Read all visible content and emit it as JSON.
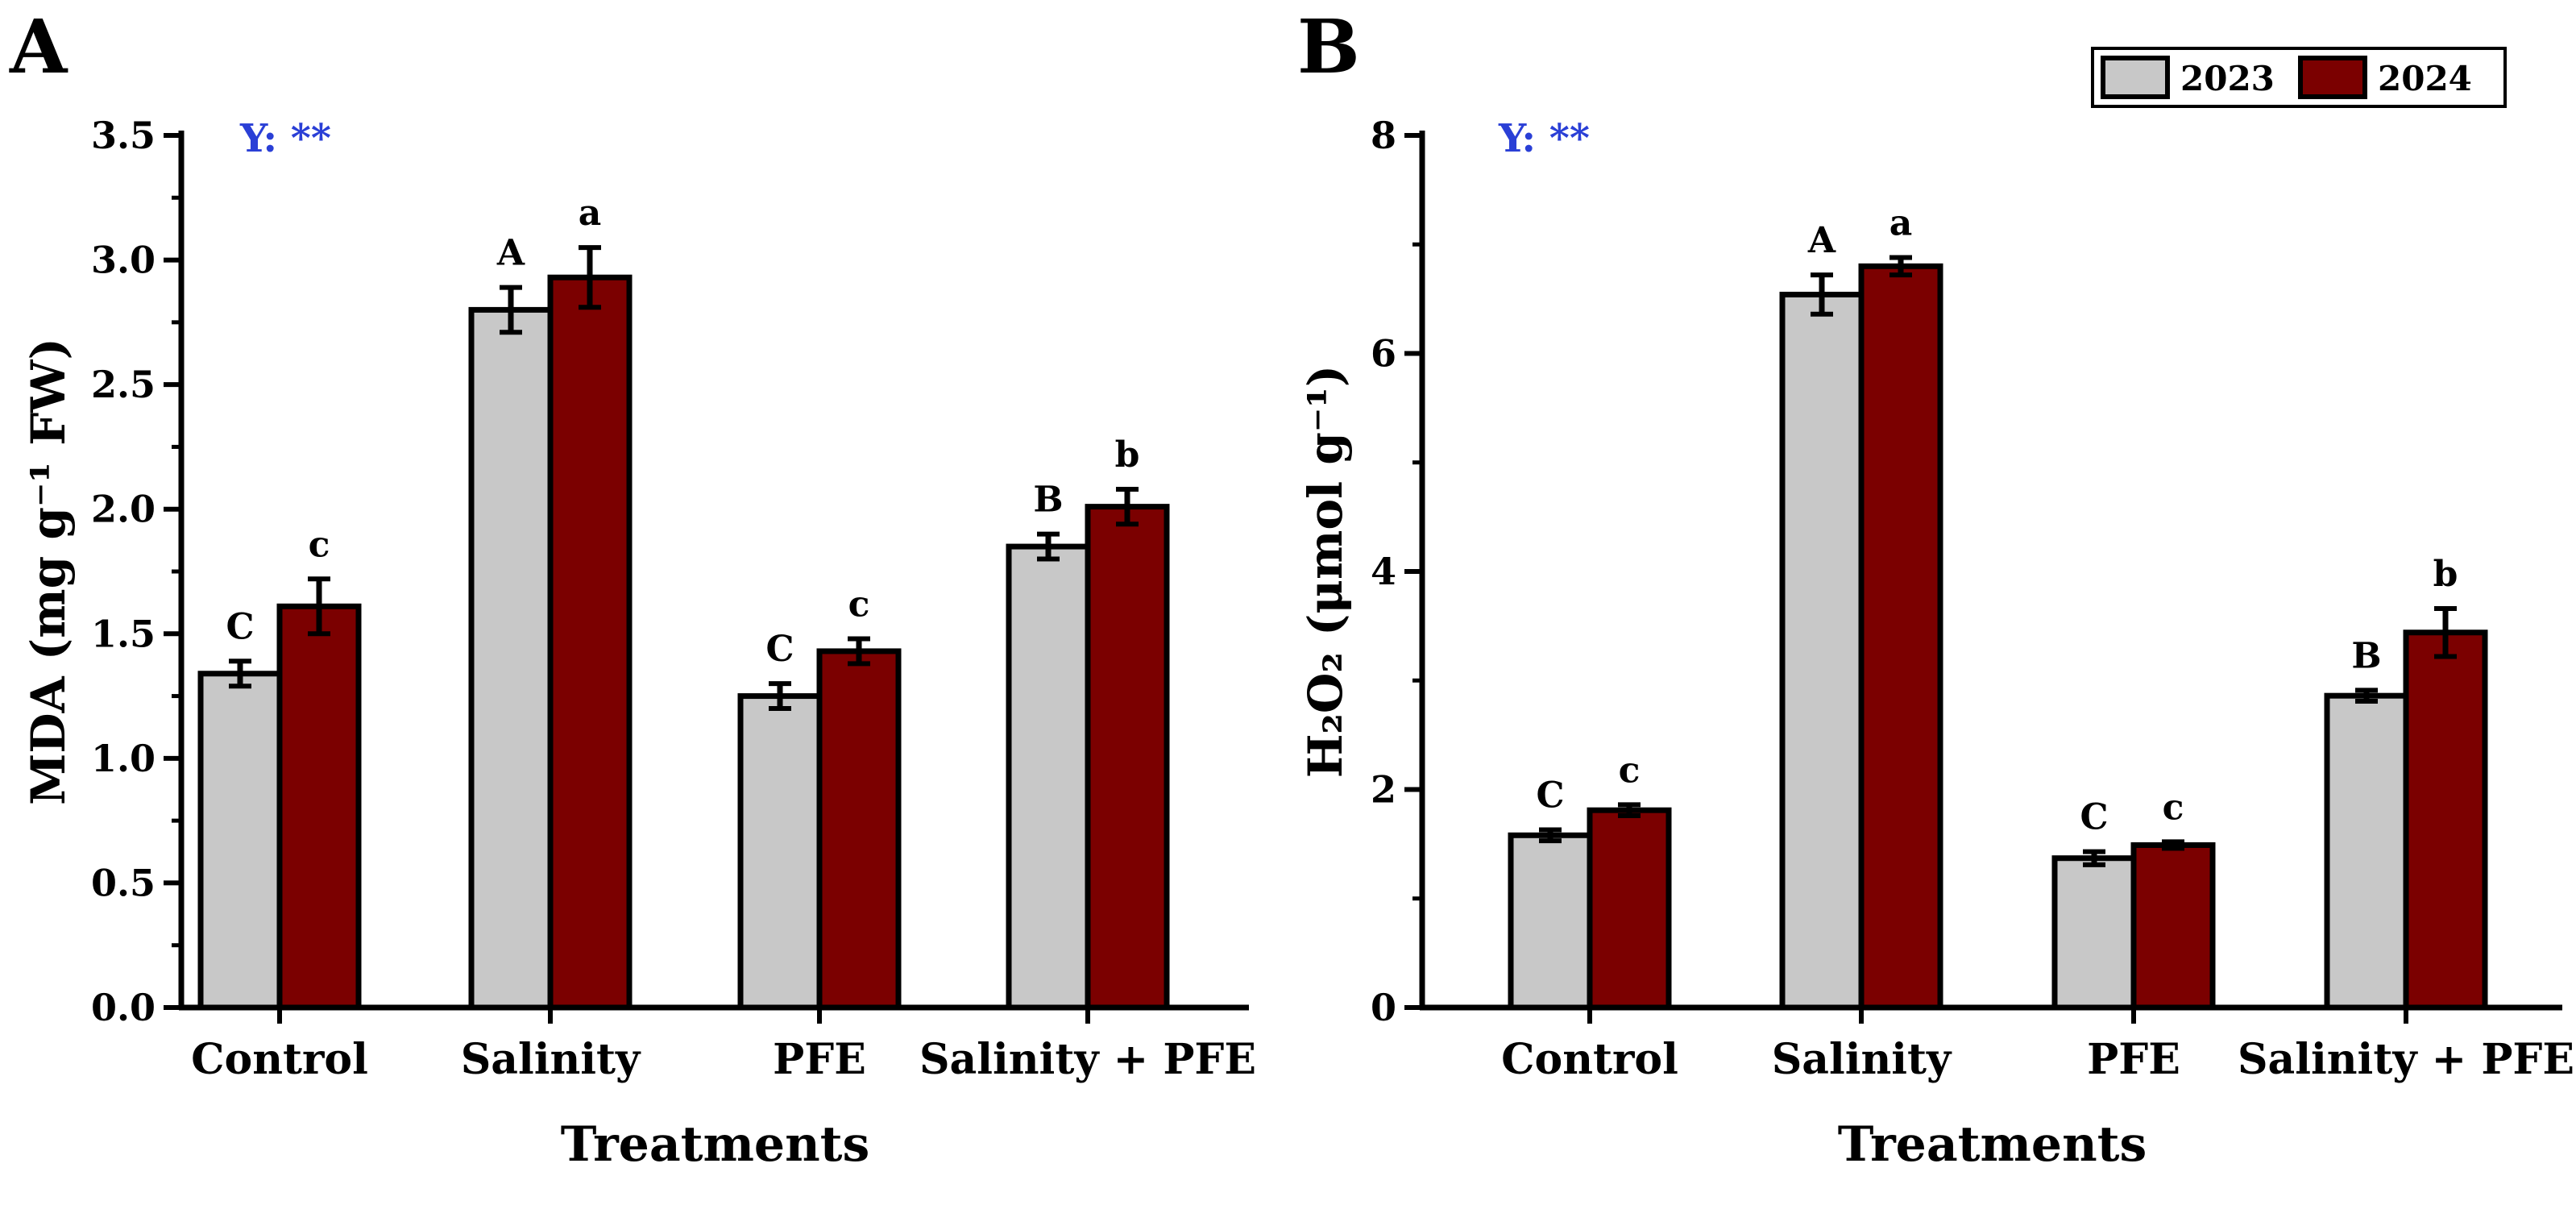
{
  "colors": {
    "series_2023": "#c8c8c8",
    "series_2024": "#7b0000",
    "axis": "#000000",
    "annotation": "#2a3fd6"
  },
  "legend": {
    "labels": [
      "2023",
      "2024"
    ],
    "placement": "top-right"
  },
  "chart_data": [
    {
      "type": "bar",
      "panel_label": "A",
      "annotation": "Y: **",
      "title": "",
      "xlabel": "Treatments",
      "ylabel": "MDA (mg g⁻¹ FW)",
      "ylim": [
        0,
        3.5
      ],
      "yticks": [
        "0.0",
        "0.5",
        "1.0",
        "1.5",
        "2.0",
        "2.5",
        "3.0",
        "3.5"
      ],
      "categories": [
        "Control",
        "Salinity",
        "PFE",
        "Salinity + PFE"
      ],
      "series": [
        {
          "name": "2023",
          "values": [
            1.34,
            2.8,
            1.25,
            1.85
          ],
          "errors": [
            0.05,
            0.09,
            0.05,
            0.05
          ],
          "letters": [
            "C",
            "A",
            "C",
            "B"
          ]
        },
        {
          "name": "2024",
          "values": [
            1.61,
            2.93,
            1.43,
            2.01
          ],
          "errors": [
            0.11,
            0.12,
            0.05,
            0.07
          ],
          "letters": [
            "c",
            "a",
            "c",
            "b"
          ]
        }
      ]
    },
    {
      "type": "bar",
      "panel_label": "B",
      "annotation": "Y: **",
      "title": "",
      "xlabel": "Treatments",
      "ylabel": "H₂O₂ (μmol g⁻¹)",
      "ylim": [
        0,
        8
      ],
      "yticks": [
        "0",
        "2",
        "4",
        "6",
        "8"
      ],
      "categories": [
        "Control",
        "Salinity",
        "PFE",
        "Salinity + PFE"
      ],
      "series": [
        {
          "name": "2023",
          "values": [
            1.58,
            6.54,
            1.37,
            2.86
          ],
          "errors": [
            0.05,
            0.18,
            0.06,
            0.05
          ],
          "letters": [
            "C",
            "A",
            "C",
            "B"
          ]
        },
        {
          "name": "2024",
          "values": [
            1.81,
            6.8,
            1.49,
            3.44
          ],
          "errors": [
            0.05,
            0.08,
            0.03,
            0.22
          ],
          "letters": [
            "c",
            "a",
            "c",
            "b"
          ]
        }
      ]
    }
  ]
}
